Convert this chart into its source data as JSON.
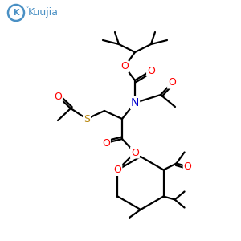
{
  "background_color": "#ffffff",
  "atom_colors": {
    "O": "#ff0000",
    "N": "#0000cd",
    "S": "#b8860b",
    "C": "#000000"
  },
  "bond_color": "#000000",
  "bond_width": 1.6,
  "logo_color": "#4a90c4"
}
